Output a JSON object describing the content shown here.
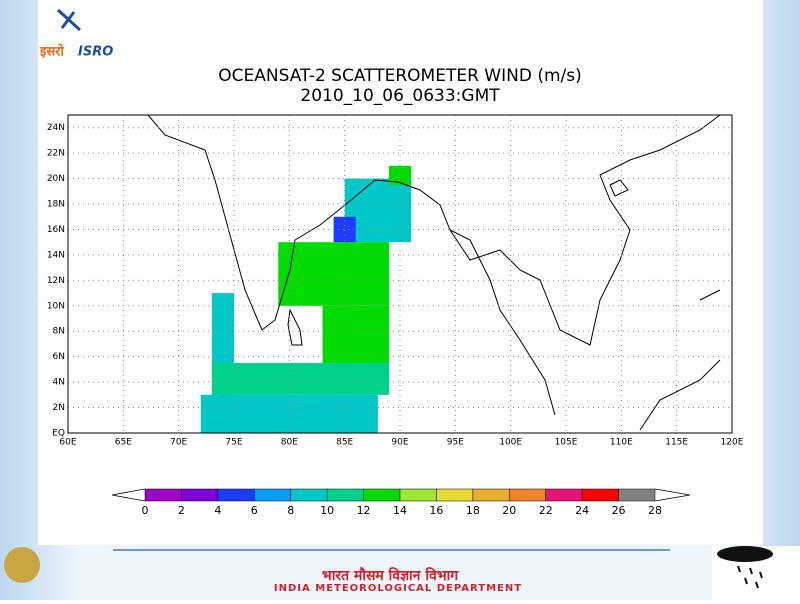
{
  "chart_data": {
    "type": "map",
    "title": "OCEANSAT-2 SCATTEROMETER WIND (m/s)",
    "subtitle": "2010_10_06_0633:GMT",
    "xlim": [
      60,
      120
    ],
    "ylim": [
      0,
      25
    ],
    "xticks": [
      {
        "value": 60,
        "label": "60E"
      },
      {
        "value": 65,
        "label": "65E"
      },
      {
        "value": 70,
        "label": "70E"
      },
      {
        "value": 75,
        "label": "75E"
      },
      {
        "value": 80,
        "label": "80E"
      },
      {
        "value": 85,
        "label": "85E"
      },
      {
        "value": 90,
        "label": "90E"
      },
      {
        "value": 95,
        "label": "95E"
      },
      {
        "value": 100,
        "label": "100E"
      },
      {
        "value": 105,
        "label": "105E"
      },
      {
        "value": 110,
        "label": "110E"
      },
      {
        "value": 115,
        "label": "115E"
      },
      {
        "value": 120,
        "label": "120E"
      }
    ],
    "yticks": [
      {
        "value": 0,
        "label": "EQ"
      },
      {
        "value": 2,
        "label": "2N"
      },
      {
        "value": 4,
        "label": "4N"
      },
      {
        "value": 6,
        "label": "6N"
      },
      {
        "value": 8,
        "label": "8N"
      },
      {
        "value": 10,
        "label": "10N"
      },
      {
        "value": 12,
        "label": "12N"
      },
      {
        "value": 14,
        "label": "14N"
      },
      {
        "value": 16,
        "label": "16N"
      },
      {
        "value": 18,
        "label": "18N"
      },
      {
        "value": 20,
        "label": "20N"
      },
      {
        "value": 22,
        "label": "22N"
      },
      {
        "value": 24,
        "label": "24N"
      }
    ],
    "grid": true,
    "swaths": [
      {
        "lon": [
          72,
          88
        ],
        "lat": [
          0,
          3
        ],
        "speed": 9
      },
      {
        "lon": [
          73,
          75
        ],
        "lat": [
          3,
          11
        ],
        "speed": 9
      },
      {
        "lon": [
          73,
          89
        ],
        "lat": [
          3,
          5.5
        ],
        "speed": 11
      },
      {
        "lon": [
          83,
          89
        ],
        "lat": [
          5.5,
          10
        ],
        "speed": 13
      },
      {
        "lon": [
          79,
          89
        ],
        "lat": [
          10,
          15
        ],
        "speed": 12
      },
      {
        "lon": [
          85,
          91
        ],
        "lat": [
          15,
          20
        ],
        "speed": 9
      },
      {
        "lon": [
          84,
          86
        ],
        "lat": [
          15,
          17
        ],
        "speed": 5
      },
      {
        "lon": [
          89,
          91
        ],
        "lat": [
          19.5,
          21
        ],
        "speed": 13
      }
    ],
    "colorbar": {
      "levels": [
        0,
        2,
        4,
        6,
        8,
        10,
        12,
        14,
        16,
        18,
        20,
        22,
        24,
        26,
        28
      ],
      "colors": [
        "#a000c8",
        "#8200dc",
        "#1e3cff",
        "#00a0ff",
        "#00c8c8",
        "#00d28c",
        "#00dc00",
        "#a0e632",
        "#e6dc32",
        "#e6af2d",
        "#f08228",
        "#e61478",
        "#fa0000",
        "#828282"
      ]
    }
  },
  "logo": {
    "hindi": "इसरो",
    "english": "ISRO"
  },
  "footer": {
    "hindi": "भारत मौसम विज्ञान विभाग",
    "english": "INDIA METEOROLOGICAL DEPARTMENT"
  }
}
